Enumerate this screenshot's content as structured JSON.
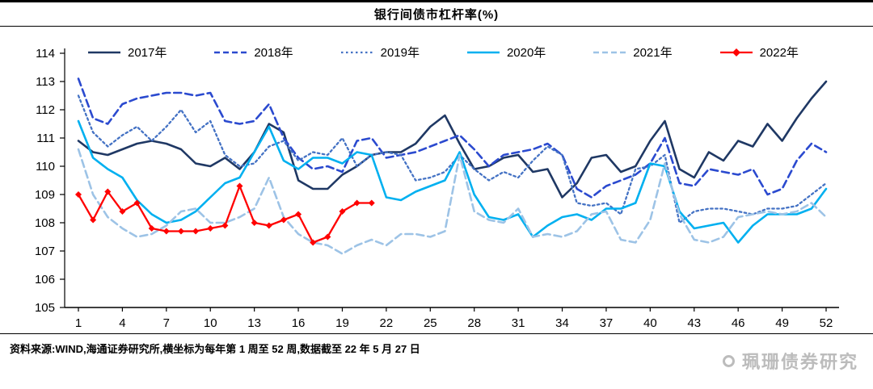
{
  "header": {
    "title": "银行间债市杠杆率(%)"
  },
  "footer": {
    "source": "资料来源:WIND,海通证券研究所,横坐标为每年第 1 周至 52 周,数据截至 22 年 5 月 27 日",
    "watermark": "珮珊债券研究"
  },
  "chart_data": {
    "type": "line",
    "title": "银行间债市杠杆率(%)",
    "xlabel": "",
    "ylabel": "",
    "grid": false,
    "legend_position": "top",
    "ylim": [
      105,
      114
    ],
    "yticks": [
      105,
      106,
      107,
      108,
      109,
      110,
      111,
      112,
      113,
      114
    ],
    "xticks": [
      1,
      4,
      7,
      10,
      13,
      16,
      19,
      22,
      25,
      28,
      31,
      34,
      37,
      40,
      43,
      46,
      49,
      52
    ],
    "x": [
      1,
      2,
      3,
      4,
      5,
      6,
      7,
      8,
      9,
      10,
      11,
      12,
      13,
      14,
      15,
      16,
      17,
      18,
      19,
      20,
      21,
      22,
      23,
      24,
      25,
      26,
      27,
      28,
      29,
      30,
      31,
      32,
      33,
      34,
      35,
      36,
      37,
      38,
      39,
      40,
      41,
      42,
      43,
      44,
      45,
      46,
      47,
      48,
      49,
      50,
      51,
      52
    ],
    "series": [
      {
        "name": "2017年",
        "color": "#1F3864",
        "style": "solid",
        "width": 2.6,
        "marker": "none",
        "values": [
          110.9,
          110.5,
          110.4,
          110.6,
          110.8,
          110.9,
          110.8,
          110.6,
          110.1,
          110.0,
          110.3,
          109.9,
          110.5,
          111.5,
          111.2,
          109.5,
          109.2,
          109.2,
          109.7,
          110.0,
          110.4,
          110.5,
          110.5,
          110.8,
          111.4,
          111.8,
          110.8,
          109.9,
          110.0,
          110.3,
          110.4,
          109.8,
          109.9,
          108.9,
          109.4,
          110.3,
          110.4,
          109.8,
          110.0,
          110.9,
          111.6,
          109.9,
          109.6,
          110.5,
          110.2,
          110.9,
          110.7,
          111.5,
          110.9,
          111.7,
          112.4,
          113.0
        ]
      },
      {
        "name": "2018年",
        "color": "#2B4ACF",
        "style": "dashed",
        "width": 2.6,
        "marker": "none",
        "values": [
          113.1,
          111.7,
          111.5,
          112.2,
          112.4,
          112.5,
          112.6,
          112.6,
          112.5,
          112.6,
          111.6,
          111.5,
          111.6,
          112.2,
          111.0,
          110.3,
          109.9,
          110.0,
          109.8,
          110.9,
          111.0,
          110.3,
          110.4,
          110.5,
          110.7,
          110.9,
          111.1,
          110.6,
          110.0,
          110.4,
          110.5,
          110.6,
          110.8,
          110.4,
          109.2,
          108.9,
          109.3,
          109.5,
          109.7,
          110.1,
          111.0,
          109.4,
          109.3,
          109.9,
          109.8,
          109.7,
          109.9,
          109.0,
          109.2,
          110.2,
          110.8,
          110.5
        ]
      },
      {
        "name": "2019年",
        "color": "#4472C4",
        "style": "dotted",
        "width": 2.3,
        "marker": "none",
        "values": [
          112.5,
          111.2,
          110.7,
          111.1,
          111.4,
          110.9,
          111.4,
          112.0,
          111.2,
          111.6,
          110.4,
          110.0,
          110.1,
          110.7,
          110.9,
          110.2,
          110.5,
          110.4,
          111.0,
          110.0,
          110.4,
          110.5,
          110.4,
          109.5,
          109.6,
          109.8,
          110.4,
          109.9,
          109.5,
          109.8,
          109.6,
          110.2,
          110.7,
          110.4,
          108.7,
          108.6,
          108.7,
          108.3,
          109.9,
          110.0,
          110.4,
          108.0,
          108.4,
          108.5,
          108.5,
          108.4,
          108.3,
          108.5,
          108.5,
          108.6,
          109.0,
          109.4
        ]
      },
      {
        "name": "2020年",
        "color": "#00B0F0",
        "style": "solid",
        "width": 2.6,
        "marker": "none",
        "values": [
          111.6,
          110.3,
          109.9,
          109.6,
          108.8,
          108.3,
          108.0,
          108.1,
          108.4,
          108.9,
          109.4,
          109.6,
          110.5,
          111.4,
          110.2,
          109.9,
          110.3,
          110.3,
          110.1,
          110.5,
          110.4,
          108.9,
          108.8,
          109.1,
          109.3,
          109.5,
          110.5,
          109.0,
          108.2,
          108.1,
          108.3,
          107.5,
          107.9,
          108.2,
          108.3,
          108.1,
          108.5,
          108.5,
          108.7,
          110.1,
          110.0,
          108.4,
          107.8,
          107.9,
          108.0,
          107.3,
          107.9,
          108.3,
          108.3,
          108.3,
          108.5,
          109.2
        ]
      },
      {
        "name": "2021年",
        "color": "#9DC3E6",
        "style": "dashed",
        "width": 2.6,
        "marker": "none",
        "values": [
          110.6,
          109.0,
          108.2,
          107.8,
          107.5,
          107.6,
          107.9,
          108.4,
          108.5,
          108.0,
          108.0,
          108.2,
          108.5,
          109.6,
          108.2,
          107.6,
          107.3,
          107.2,
          106.9,
          107.2,
          107.4,
          107.2,
          107.6,
          107.6,
          107.5,
          107.7,
          110.4,
          108.4,
          108.1,
          108.0,
          108.5,
          107.5,
          107.6,
          107.5,
          107.7,
          108.3,
          108.4,
          107.4,
          107.3,
          108.1,
          110.1,
          108.3,
          107.4,
          107.3,
          107.5,
          108.2,
          108.3,
          108.4,
          108.3,
          108.4,
          108.7,
          108.2
        ]
      },
      {
        "name": "2022年",
        "color": "#FF0000",
        "style": "solid",
        "width": 2.3,
        "marker": "diamond",
        "values": [
          109.0,
          108.1,
          109.1,
          108.4,
          108.7,
          107.8,
          107.7,
          107.7,
          107.7,
          107.8,
          107.9,
          109.3,
          108.0,
          107.9,
          108.1,
          108.3,
          107.3,
          107.5,
          108.4,
          108.7,
          108.7,
          null,
          null,
          null,
          null,
          null,
          null,
          null,
          null,
          null,
          null,
          null,
          null,
          null,
          null,
          null,
          null,
          null,
          null,
          null,
          null,
          null,
          null,
          null,
          null,
          null,
          null,
          null,
          null,
          null,
          null,
          null
        ]
      }
    ]
  }
}
